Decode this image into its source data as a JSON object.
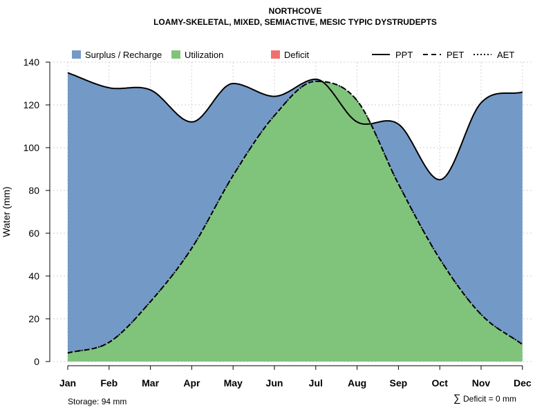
{
  "chart_data": {
    "type": "area",
    "title": "NORTHCOVE",
    "subtitle": "LOAMY-SKELETAL, MIXED, SEMIACTIVE, MESIC TYPIC DYSTRUDEPTS",
    "ylabel": "Water (mm)",
    "xlabel": "",
    "categories": [
      "Jan",
      "Feb",
      "Mar",
      "Apr",
      "May",
      "Jun",
      "Jul",
      "Aug",
      "Sep",
      "Oct",
      "Nov",
      "Dec"
    ],
    "ylim": [
      0,
      140
    ],
    "yticks": [
      0,
      20,
      40,
      60,
      80,
      100,
      120,
      140
    ],
    "grid": true,
    "series": [
      {
        "name": "PPT",
        "style": "solid",
        "values": [
          135,
          128,
          127,
          112,
          130,
          124,
          132,
          112,
          111,
          85,
          121,
          126
        ]
      },
      {
        "name": "PET",
        "style": "dashed",
        "values": [
          4,
          9,
          28,
          53,
          87,
          115,
          131,
          122,
          83,
          48,
          22,
          8
        ]
      },
      {
        "name": "AET",
        "style": "dotted",
        "values": [
          4,
          9,
          28,
          53,
          87,
          115,
          131,
          122,
          83,
          48,
          22,
          8
        ]
      }
    ],
    "areas": [
      {
        "name": "Surplus / Recharge",
        "color": "#7399c6"
      },
      {
        "name": "Utilization",
        "color": "#80c47c"
      },
      {
        "name": "Deficit",
        "color": "#f07070"
      }
    ],
    "legend_position": "top",
    "annotations": {
      "storage": "Storage: 94 mm",
      "deficit": "Deficit = 0 mm",
      "deficit_symbol": "∑"
    }
  }
}
